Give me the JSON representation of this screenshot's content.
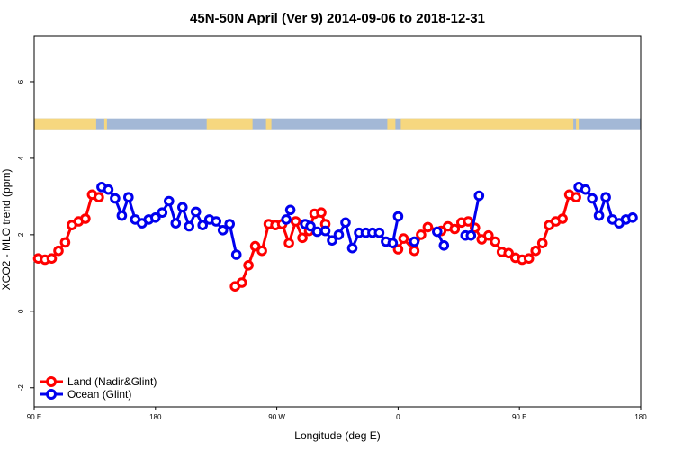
{
  "chart_data": {
    "type": "line",
    "title": "45N-50N April (Ver 9)   2014-09-06 to 2018-12-31",
    "xlabel": "Longitude (deg E)",
    "ylabel": "XCO2 - MLO trend (ppm)",
    "x_unit": "longitude index (deg); 90 E = 90, 180 = 180, 90 W = 270, 0 = 360, 90 E = 450, 180 = 540",
    "xlim": [
      90,
      540
    ],
    "ylim": [
      -2.5,
      7.2
    ],
    "x_ticks": [
      {
        "value": 90,
        "label": "90 E"
      },
      {
        "value": 180,
        "label": "180"
      },
      {
        "value": 270,
        "label": "90 W"
      },
      {
        "value": 360,
        "label": "0"
      },
      {
        "value": 450,
        "label": "90 E"
      },
      {
        "value": 540,
        "label": "180"
      }
    ],
    "y_ticks": [
      {
        "value": -2,
        "label": "-2"
      },
      {
        "value": 0,
        "label": "0"
      },
      {
        "value": 2,
        "label": "2"
      },
      {
        "value": 4,
        "label": "4"
      },
      {
        "value": 6,
        "label": "6"
      }
    ],
    "surface_strip": {
      "y_center": 4.9,
      "land_color": "#f6d77f",
      "ocean_color": "#a3b8d6"
    },
    "series": [
      {
        "name": "Land (Nadir&Glint)",
        "color": "#ff0000",
        "segments": [
          [
            [
              93,
              1.38
            ],
            [
              98,
              1.35
            ],
            [
              103,
              1.38
            ],
            [
              108,
              1.58
            ],
            [
              113,
              1.8
            ],
            [
              118,
              2.25
            ],
            [
              123,
              2.35
            ],
            [
              128,
              2.42
            ],
            [
              133,
              3.05
            ],
            [
              138,
              2.98
            ]
          ],
          [
            [
              239,
              0.65
            ],
            [
              244,
              0.75
            ],
            [
              249,
              1.2
            ],
            [
              254,
              1.7
            ],
            [
              259,
              1.58
            ],
            [
              264,
              2.28
            ],
            [
              269,
              2.25
            ],
            [
              274,
              2.28
            ],
            [
              279,
              1.78
            ],
            [
              284,
              2.35
            ],
            [
              289,
              1.92
            ],
            [
              294,
              2.1
            ],
            [
              298,
              2.55
            ],
            [
              303,
              2.58
            ],
            [
              306,
              2.28
            ]
          ],
          [
            [
              360,
              1.62
            ],
            [
              364,
              1.9
            ],
            [
              372,
              1.58
            ],
            [
              377,
              2.0
            ],
            [
              382,
              2.2
            ],
            [
              392,
              2.1
            ],
            [
              397,
              2.22
            ],
            [
              402,
              2.15
            ],
            [
              407,
              2.32
            ],
            [
              412,
              2.35
            ],
            [
              417,
              2.18
            ],
            [
              422,
              1.88
            ],
            [
              427,
              1.98
            ],
            [
              432,
              1.82
            ],
            [
              437,
              1.55
            ],
            [
              442,
              1.52
            ],
            [
              447,
              1.4
            ],
            [
              452,
              1.35
            ],
            [
              457,
              1.38
            ],
            [
              462,
              1.58
            ],
            [
              467,
              1.78
            ],
            [
              472,
              2.25
            ],
            [
              477,
              2.35
            ],
            [
              482,
              2.42
            ],
            [
              487,
              3.05
            ],
            [
              492,
              2.98
            ]
          ]
        ]
      },
      {
        "name": "Ocean (Glint)",
        "color": "#0000ee",
        "segments": [
          [
            [
              140,
              3.25
            ],
            [
              145,
              3.18
            ],
            [
              150,
              2.95
            ],
            [
              155,
              2.5
            ],
            [
              160,
              2.98
            ],
            [
              165,
              2.4
            ],
            [
              170,
              2.3
            ],
            [
              175,
              2.4
            ],
            [
              180,
              2.45
            ],
            [
              185,
              2.58
            ],
            [
              190,
              2.88
            ],
            [
              195,
              2.3
            ],
            [
              200,
              2.72
            ],
            [
              205,
              2.22
            ],
            [
              210,
              2.6
            ],
            [
              215,
              2.25
            ],
            [
              220,
              2.4
            ],
            [
              225,
              2.35
            ],
            [
              230,
              2.12
            ],
            [
              235,
              2.28
            ],
            [
              240,
              1.48
            ]
          ],
          [
            [
              277,
              2.4
            ],
            [
              280,
              2.65
            ]
          ],
          [
            [
              291,
              2.28
            ],
            [
              295,
              2.22
            ],
            [
              300,
              2.08
            ],
            [
              306,
              2.1
            ],
            [
              311,
              1.85
            ],
            [
              316,
              2.0
            ],
            [
              321,
              2.32
            ],
            [
              326,
              1.65
            ],
            [
              331,
              2.05
            ],
            [
              336,
              2.05
            ],
            [
              341,
              2.05
            ],
            [
              346,
              2.05
            ],
            [
              351,
              1.82
            ],
            [
              356,
              1.78
            ],
            [
              360,
              2.48
            ]
          ],
          [
            [
              372,
              1.82
            ]
          ],
          [
            [
              389,
              2.08
            ],
            [
              394,
              1.72
            ]
          ],
          [
            [
              410,
              1.98
            ],
            [
              414,
              1.98
            ],
            [
              420,
              3.02
            ]
          ],
          [
            [
              494,
              3.25
            ],
            [
              499,
              3.18
            ],
            [
              504,
              2.95
            ],
            [
              509,
              2.5
            ],
            [
              514,
              2.98
            ],
            [
              519,
              2.4
            ],
            [
              524,
              2.3
            ],
            [
              529,
              2.4
            ],
            [
              534,
              2.45
            ]
          ]
        ]
      }
    ],
    "legend": {
      "position": "bottom-left",
      "entries": [
        "Land (Nadir&Glint)",
        "Ocean (Glint)"
      ]
    }
  }
}
